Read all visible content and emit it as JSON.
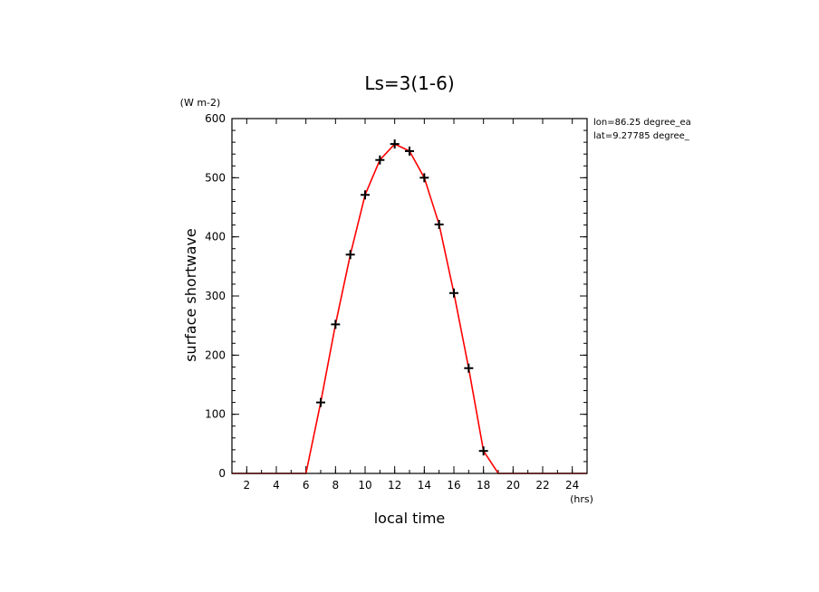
{
  "chart_data": {
    "type": "line",
    "title": "Ls=3(1-6)",
    "xlabel": "local time",
    "ylabel": "surface shortwave",
    "xunit": "(hrs)",
    "yunit": "(W m-2)",
    "xlim": [
      1,
      25
    ],
    "ylim": [
      0,
      600
    ],
    "xticks": [
      2,
      4,
      6,
      8,
      10,
      12,
      14,
      16,
      18,
      20,
      22,
      24
    ],
    "yticks": [
      0,
      100,
      200,
      300,
      400,
      500,
      600
    ],
    "annotations": [
      "lon=86.25 degree_ea",
      "lat=9.27785 degree_"
    ],
    "series": [
      {
        "color": "#ff0000",
        "marker": "+",
        "marker_color": "#000000",
        "x": [
          1,
          2,
          3,
          4,
          5,
          6,
          7,
          8,
          9,
          10,
          11,
          12,
          13,
          14,
          15,
          16,
          17,
          18,
          19,
          20,
          21,
          22,
          23,
          24,
          25
        ],
        "y": [
          0,
          0,
          0,
          0,
          0,
          0,
          120,
          252,
          370,
          471,
          530,
          557,
          545,
          500,
          421,
          305,
          178,
          38,
          0,
          0,
          0,
          0,
          0,
          0,
          0
        ]
      }
    ]
  }
}
